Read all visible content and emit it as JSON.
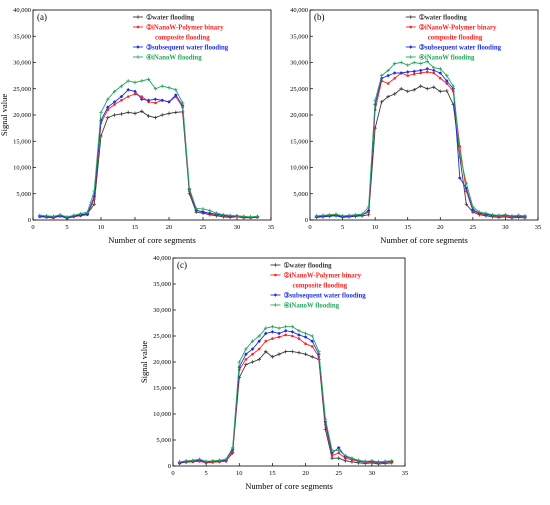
{
  "colors": {
    "water": "#3a3a3a",
    "polymer": "#ff2020",
    "subsequent": "#1f2fe8",
    "nanow": "#22a85a"
  },
  "chart_data": [
    {
      "type": "line",
      "panel_label": "(a)",
      "xlabel": "Number of core segments",
      "ylabel": "Signal value",
      "xlim": [
        0,
        35
      ],
      "ylim": [
        0,
        40000
      ],
      "xticks": [
        0,
        5,
        10,
        15,
        20,
        25,
        30,
        35
      ],
      "xtick_labels": [
        "0",
        "5",
        "10",
        "15",
        "20",
        "25",
        "30",
        "35"
      ],
      "yticks": [
        0,
        5000,
        10000,
        15000,
        20000,
        25000,
        30000,
        35000,
        40000
      ],
      "ytick_labels": [
        "0",
        "5,000",
        "10,000",
        "15,000",
        "20,000",
        "25,000",
        "30,000",
        "35,000",
        "40,000"
      ],
      "legend": [
        {
          "text": "①water flooding",
          "color": "#3a3a3a",
          "marker": "plus"
        },
        {
          "text": "②iNanoW-Polymer binary",
          "text2": "composite flooding",
          "color": "#ff2020",
          "marker": "dot"
        },
        {
          "text": "③subsequent water flooding",
          "color": "#1f2fe8",
          "marker": "diamond"
        },
        {
          "text": "④iNanoW flooding",
          "color": "#22a85a",
          "marker": "plus"
        }
      ],
      "x": [
        1,
        2,
        3,
        4,
        5,
        6,
        7,
        8,
        9,
        10,
        11,
        12,
        13,
        14,
        15,
        16,
        17,
        18,
        19,
        20,
        21,
        22,
        23,
        24,
        25,
        26,
        27,
        28,
        29,
        30,
        31,
        32,
        33
      ],
      "series": [
        {
          "color": "#3a3a3a",
          "values": [
            800,
            700,
            600,
            900,
            500,
            800,
            1000,
            1200,
            3000,
            16000,
            19500,
            20000,
            20200,
            20500,
            20300,
            20700,
            19800,
            19500,
            20000,
            20300,
            20500,
            20600,
            5000,
            1500,
            1300,
            1000,
            800,
            600,
            500,
            600,
            400,
            500,
            600
          ]
        },
        {
          "color": "#ff2020",
          "values": [
            600,
            500,
            400,
            700,
            300,
            600,
            800,
            1000,
            4000,
            18500,
            21000,
            22000,
            22800,
            23500,
            24000,
            23500,
            22500,
            22300,
            22800,
            22500,
            23500,
            21500,
            5500,
            1800,
            1600,
            1200,
            1000,
            800,
            600,
            700,
            500,
            400,
            500
          ]
        },
        {
          "color": "#1f2fe8",
          "values": [
            700,
            600,
            500,
            800,
            400,
            700,
            900,
            1100,
            4500,
            19000,
            21500,
            22500,
            23500,
            24800,
            24500,
            23000,
            22800,
            23000,
            22800,
            22500,
            23800,
            21800,
            5800,
            1900,
            1500,
            1300,
            1100,
            900,
            700,
            800,
            600,
            500,
            600
          ]
        },
        {
          "color": "#22a85a",
          "values": [
            900,
            800,
            700,
            1000,
            600,
            900,
            1200,
            1500,
            5500,
            20500,
            23000,
            24500,
            25500,
            26500,
            26200,
            26500,
            26800,
            25000,
            25500,
            25200,
            24800,
            22300,
            6000,
            2200,
            2100,
            1800,
            1300,
            1000,
            900,
            800,
            700,
            600,
            700
          ]
        }
      ]
    },
    {
      "type": "line",
      "panel_label": "(b)",
      "xlabel": "Number of core segments",
      "ylabel": "",
      "xlim": [
        0,
        35
      ],
      "ylim": [
        0,
        40000
      ],
      "xticks": [
        0,
        5,
        10,
        15,
        20,
        25,
        30,
        35
      ],
      "xtick_labels": [
        "0",
        "5",
        "10",
        "15",
        "20",
        "25",
        "30",
        "35"
      ],
      "yticks": [
        0,
        5000,
        10000,
        15000,
        20000,
        25000,
        30000,
        35000,
        40000
      ],
      "ytick_labels": [
        "0",
        "5,000",
        "10,000",
        "15,000",
        "20,000",
        "25,000",
        "30,000",
        "35,000",
        "40,000"
      ],
      "legend": [
        {
          "text": "①water flooding",
          "color": "#3a3a3a",
          "marker": "plus"
        },
        {
          "text": "②iNanoW-Polymer binary",
          "text2": "composite flooding",
          "color": "#ff2020",
          "marker": "dot"
        },
        {
          "text": "③subsequent water flooding",
          "color": "#1f2fe8",
          "marker": "diamond"
        },
        {
          "text": "④iNanoW flooding",
          "color": "#22a85a",
          "marker": "plus"
        }
      ],
      "x": [
        1,
        2,
        3,
        4,
        5,
        6,
        7,
        8,
        9,
        10,
        11,
        12,
        13,
        14,
        15,
        16,
        17,
        18,
        19,
        20,
        21,
        22,
        23,
        24,
        25,
        26,
        27,
        28,
        29,
        30,
        31,
        32,
        33
      ],
      "series": [
        {
          "color": "#3a3a3a",
          "values": [
            500,
            600,
            700,
            800,
            500,
            600,
            700,
            800,
            1000,
            17500,
            22500,
            23500,
            24000,
            25000,
            24500,
            24800,
            25500,
            25000,
            25300,
            24500,
            24600,
            22000,
            12000,
            3000,
            1500,
            1000,
            800,
            600,
            500,
            600,
            400,
            500,
            400
          ]
        },
        {
          "color": "#ff2020",
          "values": [
            700,
            800,
            900,
            1000,
            700,
            800,
            900,
            1000,
            1500,
            21000,
            26500,
            26000,
            27000,
            28000,
            27500,
            27800,
            28000,
            28200,
            28000,
            27000,
            26000,
            24500,
            14000,
            5500,
            1800,
            1200,
            1000,
            800,
            700,
            800,
            600,
            700,
            600
          ]
        },
        {
          "color": "#1f2fe8",
          "values": [
            600,
            700,
            800,
            900,
            600,
            700,
            800,
            900,
            1800,
            22000,
            27000,
            27500,
            28000,
            28000,
            28200,
            28300,
            28500,
            28800,
            28500,
            28000,
            26500,
            25000,
            8000,
            6000,
            2000,
            1300,
            1100,
            900,
            800,
            900,
            700,
            800,
            700
          ]
        },
        {
          "color": "#22a85a",
          "values": [
            800,
            900,
            1000,
            1100,
            800,
            900,
            1000,
            1100,
            2500,
            22800,
            27500,
            28500,
            29800,
            30000,
            29500,
            30000,
            29800,
            30200,
            29000,
            28800,
            27500,
            25500,
            12500,
            7000,
            2500,
            1500,
            1300,
            1000,
            900,
            1000,
            800,
            900,
            800
          ]
        }
      ]
    },
    {
      "type": "line",
      "panel_label": "(c)",
      "xlabel": "Number of core segments",
      "ylabel": "Signal value",
      "xlim": [
        0,
        35
      ],
      "ylim": [
        0,
        40000
      ],
      "xticks": [
        0,
        5,
        10,
        15,
        20,
        25,
        30,
        35
      ],
      "xtick_labels": [
        "0",
        "5",
        "10",
        "15",
        "20",
        "25",
        "30",
        "35"
      ],
      "yticks": [
        0,
        5000,
        10000,
        15000,
        20000,
        25000,
        30000,
        35000,
        40000
      ],
      "ytick_labels": [
        "0",
        "5,000",
        "10,000",
        "15,000",
        "20,000",
        "25,000",
        "30,000",
        "35,000",
        "40,000"
      ],
      "legend": [
        {
          "text": "①water flooding",
          "color": "#3a3a3a",
          "marker": "plus"
        },
        {
          "text": "②iNanoW-Polymer binary",
          "text2": "composite flooding",
          "color": "#ff2020",
          "marker": "dot"
        },
        {
          "text": "③subsequent water flooding",
          "color": "#1f2fe8",
          "marker": "diamond"
        },
        {
          "text": "④iNanoW flooding",
          "color": "#22a85a",
          "marker": "plus"
        }
      ],
      "x": [
        1,
        2,
        3,
        4,
        5,
        6,
        7,
        8,
        9,
        10,
        11,
        12,
        13,
        14,
        15,
        16,
        17,
        18,
        19,
        20,
        21,
        22,
        23,
        24,
        25,
        26,
        27,
        28,
        29,
        30,
        31,
        32,
        33
      ],
      "series": [
        {
          "color": "#3a3a3a",
          "values": [
            700,
            800,
            900,
            1000,
            700,
            800,
            900,
            1000,
            2500,
            17000,
            19500,
            20000,
            20500,
            22000,
            21000,
            21500,
            22000,
            22000,
            21800,
            21500,
            21000,
            20500,
            7000,
            1500,
            1500,
            1000,
            800,
            600,
            500,
            600,
            400,
            500,
            600
          ]
        },
        {
          "color": "#ff2020",
          "values": [
            600,
            700,
            800,
            900,
            600,
            700,
            800,
            900,
            2800,
            18500,
            20500,
            21500,
            22500,
            24000,
            24500,
            24800,
            25200,
            25000,
            24500,
            23500,
            23000,
            21000,
            8000,
            2000,
            2500,
            1500,
            1200,
            900,
            700,
            800,
            600,
            700,
            800
          ]
        },
        {
          "color": "#1f2fe8",
          "values": [
            500,
            900,
            1000,
            1200,
            800,
            900,
            1000,
            1200,
            3200,
            19000,
            21500,
            22500,
            24000,
            25500,
            25800,
            25500,
            26000,
            25800,
            25200,
            24800,
            24000,
            21500,
            8500,
            2500,
            3500,
            1800,
            1400,
            1000,
            800,
            900,
            700,
            800,
            900
          ]
        },
        {
          "color": "#22a85a",
          "values": [
            800,
            1000,
            1100,
            1300,
            900,
            1000,
            1100,
            1300,
            3500,
            20000,
            22500,
            24000,
            25000,
            26500,
            26800,
            26500,
            26800,
            26800,
            26000,
            25500,
            25000,
            22000,
            9000,
            3000,
            3000,
            2000,
            1500,
            1100,
            900,
            1000,
            800,
            900,
            1000
          ]
        }
      ]
    }
  ]
}
